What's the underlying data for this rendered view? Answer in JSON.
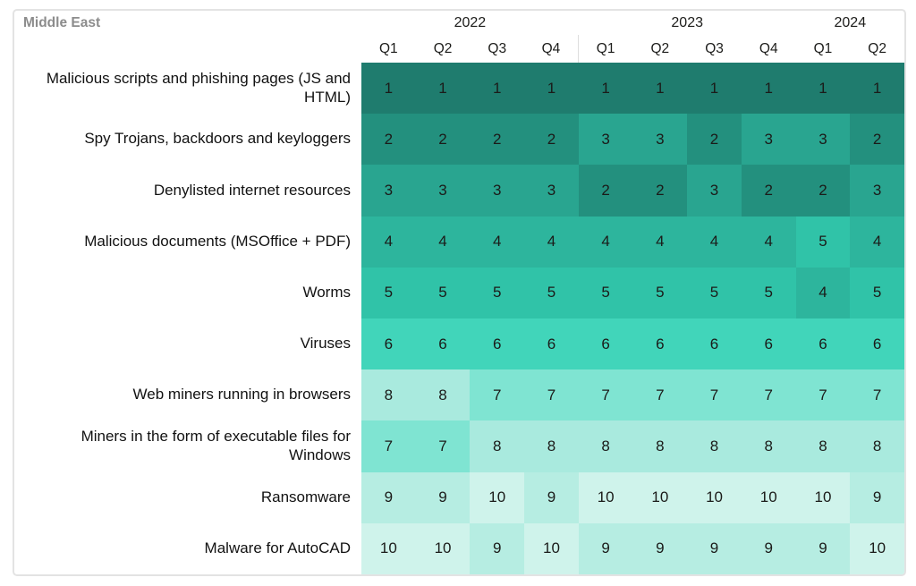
{
  "chart_data": {
    "type": "heatmap",
    "title": "Middle East",
    "col_groups": [
      {
        "label": "2022",
        "span": 4
      },
      {
        "label": "2023",
        "span": 4
      },
      {
        "label": "2024",
        "span": 2
      }
    ],
    "columns": [
      "Q1",
      "Q2",
      "Q3",
      "Q4",
      "Q1",
      "Q2",
      "Q3",
      "Q4",
      "Q1",
      "Q2"
    ],
    "rows": [
      {
        "label": "Malicious scripts and phishing pages (JS and HTML)",
        "values": [
          1,
          1,
          1,
          1,
          1,
          1,
          1,
          1,
          1,
          1
        ]
      },
      {
        "label": "Spy Trojans, backdoors and keyloggers",
        "values": [
          2,
          2,
          2,
          2,
          3,
          3,
          2,
          3,
          3,
          2
        ]
      },
      {
        "label": "Denylisted internet resources",
        "values": [
          3,
          3,
          3,
          3,
          2,
          2,
          3,
          2,
          2,
          3
        ]
      },
      {
        "label": "Malicious documents (MSOffice + PDF)",
        "values": [
          4,
          4,
          4,
          4,
          4,
          4,
          4,
          4,
          5,
          4
        ]
      },
      {
        "label": "Worms",
        "values": [
          5,
          5,
          5,
          5,
          5,
          5,
          5,
          5,
          4,
          5
        ]
      },
      {
        "label": "Viruses",
        "values": [
          6,
          6,
          6,
          6,
          6,
          6,
          6,
          6,
          6,
          6
        ]
      },
      {
        "label": "Web miners running in browsers",
        "values": [
          8,
          8,
          7,
          7,
          7,
          7,
          7,
          7,
          7,
          7
        ]
      },
      {
        "label": "Miners in the form of executable files for Windows",
        "values": [
          7,
          7,
          8,
          8,
          8,
          8,
          8,
          8,
          8,
          8
        ]
      },
      {
        "label": "Ransomware",
        "values": [
          9,
          9,
          10,
          9,
          10,
          10,
          10,
          10,
          10,
          9
        ]
      },
      {
        "label": "Malware for AutoCAD",
        "values": [
          10,
          10,
          9,
          10,
          9,
          9,
          9,
          9,
          9,
          10
        ]
      }
    ],
    "rank_colors": {
      "1": "#1f7c6e",
      "2": "#23907e",
      "3": "#29a590",
      "4": "#2db59d",
      "5": "#30c3a8",
      "6": "#41d5ba",
      "7": "#7fe4d2",
      "8": "#a9eade",
      "9": "#b6ede2",
      "10": "#cff3eb"
    },
    "text_color": "#1b1b19",
    "layout": {
      "legend": "none",
      "grid": "off",
      "header_divider_after_col": 4
    }
  }
}
